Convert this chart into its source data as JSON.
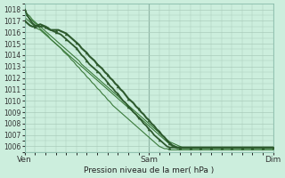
{
  "title": "Pression niveau de la mer( hPa )",
  "bg_color": "#cceedd",
  "grid_color": "#aaccbb",
  "line_dark": "#2d5a2d",
  "line_mid": "#3a7a3a",
  "line_light": "#5aaa5a",
  "ylim": [
    1005.5,
    1018.5
  ],
  "yticks": [
    1006,
    1007,
    1008,
    1009,
    1010,
    1011,
    1012,
    1013,
    1014,
    1015,
    1016,
    1017,
    1018
  ],
  "xtick_labels": [
    "Ven",
    "Sam",
    "Dim"
  ],
  "xtick_positions": [
    0,
    48,
    96
  ],
  "n_points": 97,
  "series": {
    "bold_marker": [
      1018.0,
      1017.5,
      1017.1,
      1016.8,
      1016.6,
      1016.5,
      1016.5,
      1016.5,
      1016.5,
      1016.4,
      1016.2,
      1016.1,
      1016.0,
      1015.9,
      1015.8,
      1015.6,
      1015.4,
      1015.2,
      1015.0,
      1014.8,
      1014.6,
      1014.3,
      1014.0,
      1013.8,
      1013.5,
      1013.2,
      1013.0,
      1012.8,
      1012.6,
      1012.4,
      1012.1,
      1011.9,
      1011.6,
      1011.3,
      1011.1,
      1010.8,
      1010.6,
      1010.3,
      1010.0,
      1009.8,
      1009.5,
      1009.3,
      1009.0,
      1008.8,
      1008.5,
      1008.3,
      1008.0,
      1007.8,
      1007.5,
      1007.3,
      1007.0,
      1006.8,
      1006.6,
      1006.4,
      1006.2,
      1006.0,
      1005.9,
      1005.9,
      1005.9,
      1005.9,
      1005.9,
      1005.9,
      1005.9,
      1005.9,
      1005.9,
      1005.9,
      1005.9,
      1005.9,
      1005.9,
      1005.9,
      1005.9,
      1005.9,
      1005.9,
      1005.9,
      1005.9,
      1005.9,
      1005.9,
      1005.9,
      1005.9,
      1005.9,
      1005.9,
      1005.9,
      1005.9,
      1005.9,
      1005.9,
      1005.9,
      1005.9,
      1005.9,
      1005.9,
      1005.9,
      1005.9,
      1005.9,
      1005.9,
      1005.9,
      1005.9,
      1005.9,
      1005.9
    ],
    "erratic_marker": [
      1017.0,
      1016.8,
      1016.6,
      1016.5,
      1016.5,
      1016.6,
      1016.7,
      1016.6,
      1016.5,
      1016.3,
      1016.2,
      1016.2,
      1016.2,
      1016.2,
      1016.1,
      1016.0,
      1015.9,
      1015.7,
      1015.5,
      1015.3,
      1015.1,
      1014.9,
      1014.6,
      1014.4,
      1014.2,
      1013.9,
      1013.7,
      1013.5,
      1013.2,
      1013.0,
      1012.8,
      1012.5,
      1012.3,
      1012.0,
      1011.8,
      1011.5,
      1011.3,
      1011.0,
      1010.8,
      1010.5,
      1010.2,
      1010.0,
      1009.8,
      1009.5,
      1009.3,
      1009.0,
      1008.8,
      1008.5,
      1008.3,
      1008.0,
      1007.8,
      1007.5,
      1007.3,
      1007.0,
      1006.8,
      1006.5,
      1006.3,
      1006.1,
      1006.0,
      1005.9,
      1005.9,
      1005.9,
      1005.9,
      1005.9,
      1005.9,
      1005.9,
      1005.9,
      1005.9,
      1005.9,
      1005.9,
      1005.9,
      1005.9,
      1005.9,
      1005.9,
      1005.9,
      1005.9,
      1005.9,
      1005.9,
      1005.9,
      1005.9,
      1005.9,
      1005.9,
      1005.9,
      1005.9,
      1005.9,
      1005.9,
      1005.9,
      1005.9,
      1005.9,
      1005.9,
      1005.9,
      1005.9,
      1005.9,
      1005.9,
      1005.9,
      1005.9,
      1005.9
    ],
    "smooth1": [
      1017.8,
      1017.6,
      1017.4,
      1017.1,
      1016.9,
      1016.7,
      1016.5,
      1016.3,
      1016.1,
      1015.9,
      1015.7,
      1015.5,
      1015.3,
      1015.1,
      1014.9,
      1014.7,
      1014.5,
      1014.3,
      1014.1,
      1013.9,
      1013.7,
      1013.5,
      1013.2,
      1013.0,
      1012.8,
      1012.6,
      1012.4,
      1012.2,
      1012.0,
      1011.8,
      1011.6,
      1011.4,
      1011.2,
      1011.0,
      1010.8,
      1010.6,
      1010.4,
      1010.2,
      1010.0,
      1009.8,
      1009.6,
      1009.4,
      1009.2,
      1009.0,
      1008.8,
      1008.6,
      1008.4,
      1008.2,
      1008.0,
      1007.8,
      1007.6,
      1007.4,
      1007.2,
      1007.0,
      1006.8,
      1006.6,
      1006.4,
      1006.3,
      1006.2,
      1006.1,
      1006.0,
      1005.9,
      1005.9,
      1005.9,
      1005.9,
      1005.9,
      1005.9,
      1005.9,
      1005.9,
      1005.9,
      1005.9,
      1005.9,
      1005.9,
      1005.9,
      1005.9,
      1005.9,
      1005.9,
      1005.9,
      1005.9,
      1005.9,
      1005.9,
      1005.9,
      1005.9,
      1005.9,
      1005.9,
      1005.9,
      1005.9,
      1005.9,
      1005.9,
      1005.9,
      1005.9,
      1005.9,
      1005.9,
      1005.9,
      1005.9,
      1005.9,
      1005.9
    ],
    "smooth2": [
      1017.3,
      1017.1,
      1016.9,
      1016.7,
      1016.5,
      1016.3,
      1016.2,
      1016.0,
      1015.8,
      1015.6,
      1015.4,
      1015.2,
      1015.0,
      1014.8,
      1014.6,
      1014.4,
      1014.2,
      1014.0,
      1013.8,
      1013.6,
      1013.4,
      1013.2,
      1013.0,
      1012.8,
      1012.6,
      1012.4,
      1012.2,
      1012.0,
      1011.8,
      1011.6,
      1011.4,
      1011.2,
      1011.0,
      1010.8,
      1010.6,
      1010.4,
      1010.2,
      1010.0,
      1009.8,
      1009.6,
      1009.4,
      1009.2,
      1009.0,
      1008.8,
      1008.6,
      1008.4,
      1008.2,
      1008.0,
      1007.8,
      1007.6,
      1007.4,
      1007.2,
      1007.0,
      1006.8,
      1006.6,
      1006.4,
      1006.2,
      1006.0,
      1005.9,
      1005.8,
      1005.8,
      1005.8,
      1005.8,
      1005.8,
      1005.8,
      1005.8,
      1005.8,
      1005.8,
      1005.8,
      1005.8,
      1005.8,
      1005.8,
      1005.8,
      1005.8,
      1005.8,
      1005.8,
      1005.8,
      1005.8,
      1005.8,
      1005.8,
      1005.8,
      1005.8,
      1005.8,
      1005.8,
      1005.8,
      1005.8,
      1005.8,
      1005.8,
      1005.8,
      1005.8,
      1005.8,
      1005.8,
      1005.8,
      1005.8,
      1005.8,
      1005.8,
      1005.8
    ],
    "smooth3": [
      1017.6,
      1017.4,
      1017.2,
      1017.0,
      1016.8,
      1016.6,
      1016.3,
      1016.1,
      1015.9,
      1015.7,
      1015.4,
      1015.2,
      1015.0,
      1014.8,
      1014.6,
      1014.3,
      1014.1,
      1013.9,
      1013.6,
      1013.4,
      1013.1,
      1012.9,
      1012.6,
      1012.4,
      1012.1,
      1011.9,
      1011.6,
      1011.4,
      1011.1,
      1010.9,
      1010.6,
      1010.4,
      1010.1,
      1009.9,
      1009.6,
      1009.4,
      1009.2,
      1009.0,
      1008.8,
      1008.6,
      1008.4,
      1008.2,
      1008.0,
      1007.8,
      1007.6,
      1007.4,
      1007.2,
      1007.0,
      1006.8,
      1006.6,
      1006.4,
      1006.2,
      1006.0,
      1005.9,
      1005.8,
      1005.8,
      1005.7,
      1005.7,
      1005.7,
      1005.7,
      1005.7,
      1005.7,
      1005.7,
      1005.7,
      1005.7,
      1005.7,
      1005.7,
      1005.7,
      1005.7,
      1005.7,
      1005.7,
      1005.7,
      1005.7,
      1005.7,
      1005.7,
      1005.7,
      1005.7,
      1005.7,
      1005.7,
      1005.7,
      1005.7,
      1005.7,
      1005.7,
      1005.7,
      1005.7,
      1005.7,
      1005.7,
      1005.7,
      1005.7,
      1005.7,
      1005.7,
      1005.7,
      1005.7,
      1005.7,
      1005.7,
      1005.7,
      1005.7
    ]
  }
}
